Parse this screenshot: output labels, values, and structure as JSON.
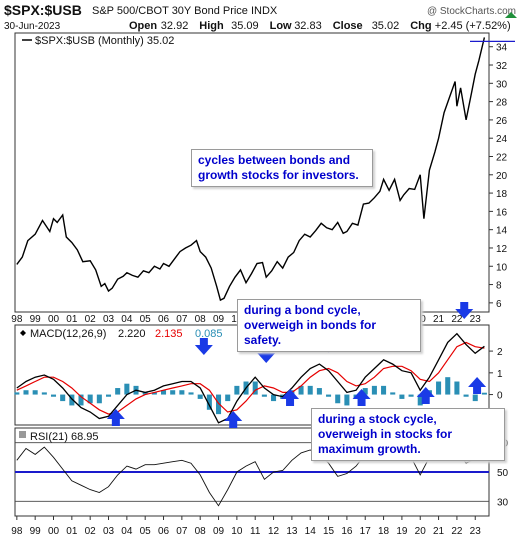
{
  "header": {
    "symbol": "$SPX:$USB",
    "description": "S&P 500/CBOT 30Y Bond Price INDX",
    "watermark": "@ StockCharts.com",
    "date": "30-Jun-2023",
    "open_label": "Open",
    "open": "32.92",
    "high_label": "High",
    "high": "35.09",
    "low_label": "Low",
    "low": "32.83",
    "close_label": "Close",
    "close": "35.02",
    "chg_label": "Chg",
    "chg": "+2.45 (+7.52%)"
  },
  "price_panel": {
    "legend": "$SPX:$USB (Monthly) 35.02",
    "last_value": 35.02
  },
  "macd_panel": {
    "label": "MACD(12,26,9)",
    "macd": "2.220",
    "signal": "2.135",
    "histogram": "0.085"
  },
  "rsi_panel": {
    "label": "RSI(21)",
    "value": "68.95"
  },
  "annotations": {
    "cycles": "cycles between bonds and growth stocks for investors.",
    "bond_cycle": "during a bond cycle, overweigh in bonds for safety.",
    "stock_cycle": "during a stock cycle, overweigh in stocks for maximum growth."
  },
  "colors": {
    "price_line": "#000000",
    "macd_line": "#000000",
    "signal_line": "#e60000",
    "histogram": "#2a8fb5",
    "arrow": "#1a3ae6",
    "annotation_text": "#0000cc",
    "rsi_line_level": "#1a1acc"
  },
  "chart_data": [
    {
      "type": "line",
      "title": "$SPX:$USB (Monthly)",
      "x_tick_labels": [
        "98",
        "99",
        "00",
        "01",
        "02",
        "03",
        "04",
        "05",
        "06",
        "07",
        "08",
        "09",
        "10",
        "11",
        "12",
        "13",
        "14",
        "15",
        "16",
        "17",
        "18",
        "19",
        "20",
        "21",
        "22",
        "23"
      ],
      "y_ticks": [
        6,
        8,
        10,
        12,
        14,
        16,
        18,
        20,
        22,
        24,
        26,
        28,
        30,
        32,
        34
      ],
      "ylim": [
        5,
        35.5
      ],
      "series": [
        {
          "x": [
            1998.0,
            1998.3,
            1998.6,
            1999.0,
            1999.4,
            1999.8,
            2000.0,
            2000.2,
            2000.5,
            2000.7,
            2001.0,
            2001.3,
            2001.6,
            2002.0,
            2002.3,
            2002.6,
            2002.8,
            2003.0,
            2003.2,
            2003.5,
            2003.8,
            2004.0,
            2004.3,
            2004.6,
            2004.9,
            2005.2,
            2005.5,
            2005.8,
            2006.0,
            2006.3,
            2006.6,
            2006.9,
            2007.2,
            2007.5,
            2007.8,
            2008.0,
            2008.3,
            2008.6,
            2008.9,
            2009.1,
            2009.3,
            2009.6,
            2009.9,
            2010.2,
            2010.5,
            2010.8,
            2011.1,
            2011.4,
            2011.6,
            2011.9,
            2012.2,
            2012.5,
            2012.8,
            2013.1,
            2013.4,
            2013.7,
            2014.0,
            2014.3,
            2014.6,
            2014.9,
            2015.2,
            2015.5,
            2015.8,
            2016.0,
            2016.3,
            2016.6,
            2016.9,
            2017.2,
            2017.5,
            2017.8,
            2018.0,
            2018.3,
            2018.6,
            2018.9,
            2019.1,
            2019.4,
            2019.7,
            2020.0,
            2020.2,
            2020.5,
            2020.8,
            2021.0,
            2021.3,
            2021.6,
            2021.9,
            2022.0,
            2022.2,
            2022.5,
            2022.8,
            2023.0,
            2023.2,
            2023.5
          ],
          "y": [
            10.2,
            11.0,
            12.8,
            13.5,
            15.0,
            13.8,
            15.2,
            14.8,
            15.6,
            13.2,
            12.6,
            11.8,
            10.5,
            10.6,
            9.6,
            7.8,
            8.1,
            7.3,
            7.6,
            8.6,
            8.9,
            9.3,
            9.0,
            8.8,
            9.5,
            9.3,
            10.0,
            9.7,
            10.3,
            10.0,
            10.8,
            11.6,
            12.0,
            12.3,
            12.8,
            11.6,
            11.0,
            9.8,
            7.8,
            6.3,
            6.5,
            7.8,
            8.8,
            9.6,
            8.2,
            9.2,
            10.3,
            10.4,
            8.8,
            9.5,
            10.5,
            9.8,
            11.0,
            11.5,
            12.8,
            13.5,
            13.2,
            13.9,
            14.7,
            14.2,
            14.0,
            14.8,
            13.6,
            13.8,
            14.7,
            14.5,
            16.8,
            16.9,
            17.5,
            18.2,
            19.5,
            18.3,
            19.5,
            17.2,
            17.8,
            18.5,
            18.4,
            20.0,
            15.2,
            20.5,
            22.5,
            24.0,
            26.8,
            28.5,
            30.2,
            27.5,
            29.5,
            26.0,
            29.0,
            31.0,
            32.5,
            35.02
          ]
        }
      ]
    },
    {
      "type": "line",
      "title": "MACD(12,26,9)",
      "y_ticks": [
        -1,
        0,
        1,
        2
      ],
      "ylim": [
        -1.4,
        3.2
      ],
      "x": [
        1998.0,
        1998.5,
        1999.0,
        1999.5,
        2000.0,
        2000.5,
        2001.0,
        2001.5,
        2002.0,
        2002.5,
        2003.0,
        2003.5,
        2004.0,
        2004.5,
        2005.0,
        2005.5,
        2006.0,
        2006.5,
        2007.0,
        2007.5,
        2008.0,
        2008.5,
        2009.0,
        2009.5,
        2010.0,
        2010.5,
        2011.0,
        2011.5,
        2012.0,
        2012.5,
        2013.0,
        2013.5,
        2014.0,
        2014.5,
        2015.0,
        2015.5,
        2016.0,
        2016.5,
        2017.0,
        2017.5,
        2018.0,
        2018.5,
        2019.0,
        2019.5,
        2020.0,
        2020.5,
        2021.0,
        2021.5,
        2022.0,
        2022.5,
        2023.0,
        2023.5
      ],
      "series": [
        {
          "name": "MACD",
          "values": [
            0.3,
            0.6,
            0.8,
            0.9,
            0.7,
            0.3,
            -0.2,
            -0.6,
            -0.8,
            -1.1,
            -1.0,
            -0.5,
            0.0,
            0.2,
            0.1,
            0.2,
            0.4,
            0.5,
            0.6,
            0.6,
            0.3,
            -0.5,
            -1.3,
            -1.1,
            -0.3,
            0.3,
            0.8,
            0.3,
            0.0,
            -0.1,
            0.3,
            0.8,
            1.2,
            1.4,
            1.1,
            0.6,
            0.1,
            0.2,
            0.8,
            1.2,
            1.6,
            1.4,
            1.1,
            1.0,
            0.2,
            0.8,
            1.6,
            2.4,
            2.8,
            2.3,
            1.9,
            2.22
          ]
        },
        {
          "name": "Signal",
          "values": [
            0.2,
            0.4,
            0.6,
            0.8,
            0.8,
            0.6,
            0.3,
            -0.1,
            -0.4,
            -0.7,
            -0.9,
            -0.8,
            -0.5,
            -0.2,
            0.0,
            0.1,
            0.2,
            0.3,
            0.4,
            0.5,
            0.5,
            0.2,
            -0.4,
            -0.8,
            -0.7,
            -0.3,
            0.2,
            0.4,
            0.3,
            0.1,
            0.1,
            0.4,
            0.8,
            1.1,
            1.2,
            1.0,
            0.6,
            0.4,
            0.5,
            0.8,
            1.2,
            1.3,
            1.3,
            1.1,
            0.7,
            0.6,
            1.0,
            1.6,
            2.2,
            2.4,
            2.2,
            2.135
          ]
        },
        {
          "name": "Histogram",
          "values": [
            0.1,
            0.2,
            0.2,
            0.1,
            -0.1,
            -0.3,
            -0.5,
            -0.5,
            -0.4,
            -0.4,
            -0.1,
            0.3,
            0.5,
            0.4,
            0.1,
            0.1,
            0.2,
            0.2,
            0.2,
            0.1,
            -0.2,
            -0.7,
            -0.9,
            -0.3,
            0.4,
            0.6,
            0.6,
            -0.1,
            -0.3,
            -0.2,
            0.2,
            0.4,
            0.4,
            0.3,
            -0.1,
            -0.4,
            -0.5,
            -0.2,
            0.3,
            0.4,
            0.4,
            0.1,
            -0.2,
            -0.1,
            -0.5,
            0.2,
            0.6,
            0.8,
            0.6,
            -0.1,
            -0.3,
            0.085
          ]
        }
      ]
    },
    {
      "type": "line",
      "title": "RSI(21)",
      "y_ticks": [
        30,
        50,
        70
      ],
      "ylim": [
        20,
        80
      ],
      "x": [
        1998.0,
        1998.5,
        1999.0,
        1999.5,
        2000.0,
        2000.5,
        2001.0,
        2001.5,
        2002.0,
        2002.5,
        2003.0,
        2003.5,
        2004.0,
        2004.5,
        2005.0,
        2005.5,
        2006.0,
        2006.5,
        2007.0,
        2007.5,
        2008.0,
        2008.5,
        2009.0,
        2009.5,
        2010.0,
        2010.5,
        2011.0,
        2011.5,
        2012.0,
        2012.5,
        2013.0,
        2013.5,
        2014.0,
        2014.5,
        2015.0,
        2015.5,
        2016.0,
        2016.5,
        2017.0,
        2017.5,
        2018.0,
        2018.5,
        2019.0,
        2019.5,
        2020.0,
        2020.5,
        2021.0,
        2021.5,
        2022.0,
        2022.5,
        2023.0,
        2023.5
      ],
      "series": [
        {
          "name": "RSI",
          "values": [
            58,
            66,
            62,
            67,
            60,
            52,
            44,
            41,
            38,
            36,
            40,
            48,
            54,
            52,
            55,
            55,
            56,
            57,
            58,
            56,
            48,
            36,
            27,
            38,
            50,
            54,
            57,
            45,
            50,
            51,
            58,
            63,
            65,
            62,
            56,
            47,
            49,
            54,
            62,
            65,
            67,
            62,
            58,
            60,
            48,
            60,
            65,
            68,
            64,
            56,
            59,
            68.95
          ]
        }
      ]
    }
  ]
}
